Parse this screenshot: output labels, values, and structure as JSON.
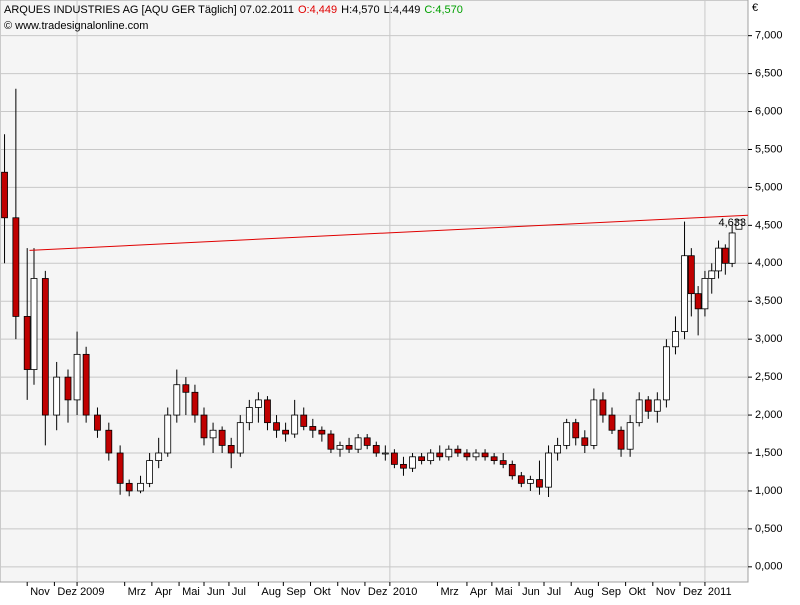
{
  "chart_data": {
    "type": "candlestick",
    "title": "ARQUES INDUSTRIES AG [AQU GER  Täglich] 07.02.2011",
    "ohlc_header": [
      {
        "text": "O:4,449",
        "color": "#e00000"
      },
      {
        "text": "H:4,570",
        "color": "#000000"
      },
      {
        "text": "L:4,449",
        "color": "#000000"
      },
      {
        "text": "C:4,570",
        "color": "#00a000"
      }
    ],
    "copyright": "© www.tradesignalonline.com",
    "y_unit": "€",
    "up_color": "#ffffff",
    "down_color": "#c00000",
    "grid": true,
    "xlim": [
      0,
      330
    ],
    "ylim": [
      -0.2,
      7.47
    ],
    "yticks": [
      {
        "value": 0,
        "label": "0,000"
      },
      {
        "value": 0.5,
        "label": "0,500"
      },
      {
        "value": 1,
        "label": "1,000"
      },
      {
        "value": 1.5,
        "label": "1,500"
      },
      {
        "value": 2,
        "label": "2,000"
      },
      {
        "value": 2.5,
        "label": "2,500"
      },
      {
        "value": 3,
        "label": "3,000"
      },
      {
        "value": 3.5,
        "label": "3,500"
      },
      {
        "value": 4,
        "label": "4,000"
      },
      {
        "value": 4.5,
        "label": "4,500"
      },
      {
        "value": 5,
        "label": "5,000"
      },
      {
        "value": 5.5,
        "label": "5,500"
      },
      {
        "value": 6,
        "label": "6,000"
      },
      {
        "value": 6.5,
        "label": "6,500"
      },
      {
        "value": 7,
        "label": "7,000"
      }
    ],
    "xticks": [
      {
        "value": 12,
        "label": "Nov"
      },
      {
        "value": 24,
        "label": "Dez"
      },
      {
        "value": 34,
        "label": "2009"
      },
      {
        "value": 55,
        "label": "Mrz"
      },
      {
        "value": 67,
        "label": "Apr"
      },
      {
        "value": 79,
        "label": "Mai"
      },
      {
        "value": 90,
        "label": "Jun"
      },
      {
        "value": 101,
        "label": "Jul"
      },
      {
        "value": 114,
        "label": "Aug"
      },
      {
        "value": 125,
        "label": "Sep"
      },
      {
        "value": 137,
        "label": "Okt"
      },
      {
        "value": 149,
        "label": "Nov"
      },
      {
        "value": 161,
        "label": "Dez"
      },
      {
        "value": 172,
        "label": "2010"
      },
      {
        "value": 193,
        "label": "Mrz"
      },
      {
        "value": 206,
        "label": "Apr"
      },
      {
        "value": 217,
        "label": "Mai"
      },
      {
        "value": 229,
        "label": "Jun"
      },
      {
        "value": 240,
        "label": "Jul"
      },
      {
        "value": 252,
        "label": "Aug"
      },
      {
        "value": 264,
        "label": "Sep"
      },
      {
        "value": 276,
        "label": "Okt"
      },
      {
        "value": 288,
        "label": "Nov"
      },
      {
        "value": 300,
        "label": "Dez"
      },
      {
        "value": 311,
        "label": "2011"
      }
    ],
    "series": {
      "x": [
        2,
        7,
        12,
        15,
        20,
        25,
        30,
        34,
        38,
        43,
        48,
        53,
        57,
        62,
        66,
        70,
        74,
        78,
        82,
        86,
        90,
        94,
        98,
        102,
        106,
        110,
        114,
        118,
        122,
        126,
        130,
        134,
        138,
        142,
        146,
        150,
        154,
        158,
        162,
        166,
        170,
        174,
        178,
        182,
        186,
        190,
        194,
        198,
        202,
        206,
        210,
        214,
        218,
        222,
        226,
        230,
        234,
        238,
        242,
        246,
        250,
        254,
        258,
        262,
        266,
        270,
        274,
        278,
        282,
        286,
        290,
        294,
        298,
        302,
        305,
        308,
        311,
        314,
        317,
        320,
        323,
        326
      ],
      "open": [
        5.2,
        4.6,
        3.3,
        2.6,
        3.8,
        2.0,
        2.5,
        2.2,
        2.8,
        2.0,
        1.8,
        1.5,
        1.1,
        1.0,
        1.1,
        1.4,
        1.5,
        2.0,
        2.4,
        2.3,
        2.0,
        1.7,
        1.8,
        1.6,
        1.5,
        1.9,
        2.1,
        2.2,
        1.9,
        1.8,
        1.75,
        2.0,
        1.85,
        1.8,
        1.75,
        1.55,
        1.6,
        1.55,
        1.7,
        1.6,
        1.5,
        1.5,
        1.35,
        1.3,
        1.45,
        1.4,
        1.5,
        1.45,
        1.55,
        1.5,
        1.45,
        1.5,
        1.45,
        1.4,
        1.35,
        1.2,
        1.1,
        1.15,
        1.05,
        1.5,
        1.6,
        1.9,
        1.7,
        1.6,
        2.2,
        2.0,
        1.8,
        1.55,
        1.9,
        2.2,
        2.05,
        2.2,
        2.9,
        3.1,
        4.1,
        3.6,
        3.4,
        3.8,
        3.9,
        4.2,
        4.0,
        4.449
      ],
      "high": [
        5.7,
        6.3,
        4.2,
        4.2,
        3.9,
        2.7,
        2.6,
        3.1,
        2.9,
        2.1,
        1.9,
        1.6,
        1.15,
        1.2,
        1.5,
        1.7,
        2.1,
        2.6,
        2.5,
        2.4,
        2.1,
        1.9,
        1.85,
        1.7,
        2.0,
        2.2,
        2.3,
        2.25,
        2.0,
        1.9,
        2.2,
        2.1,
        1.95,
        1.85,
        1.8,
        1.65,
        1.7,
        1.75,
        1.75,
        1.65,
        1.6,
        1.55,
        1.45,
        1.5,
        1.5,
        1.55,
        1.6,
        1.6,
        1.6,
        1.55,
        1.55,
        1.55,
        1.5,
        1.5,
        1.4,
        1.25,
        1.2,
        1.4,
        1.6,
        1.7,
        1.95,
        1.95,
        1.8,
        2.35,
        2.3,
        2.1,
        1.85,
        2.0,
        2.3,
        2.25,
        2.3,
        3.0,
        3.3,
        4.55,
        4.2,
        3.7,
        3.9,
        4.0,
        4.3,
        4.25,
        4.5,
        4.57
      ],
      "low": [
        4.0,
        3.0,
        2.2,
        2.4,
        1.6,
        1.8,
        1.9,
        2.0,
        1.9,
        1.7,
        1.4,
        0.95,
        0.93,
        0.97,
        1.05,
        1.3,
        1.45,
        1.9,
        2.0,
        1.9,
        1.6,
        1.5,
        1.5,
        1.3,
        1.45,
        1.8,
        1.9,
        1.8,
        1.7,
        1.65,
        1.7,
        1.8,
        1.7,
        1.65,
        1.5,
        1.45,
        1.5,
        1.5,
        1.55,
        1.45,
        1.4,
        1.3,
        1.2,
        1.25,
        1.35,
        1.35,
        1.4,
        1.4,
        1.45,
        1.4,
        1.4,
        1.4,
        1.35,
        1.3,
        1.15,
        1.05,
        1.0,
        0.95,
        0.92,
        1.4,
        1.55,
        1.6,
        1.5,
        1.55,
        1.9,
        1.75,
        1.45,
        1.45,
        1.85,
        1.95,
        1.9,
        2.1,
        2.8,
        3.0,
        3.3,
        3.05,
        3.3,
        3.6,
        3.8,
        3.85,
        3.95,
        4.449
      ],
      "close": [
        4.6,
        3.3,
        2.6,
        3.8,
        2.0,
        2.5,
        2.2,
        2.8,
        2.0,
        1.8,
        1.5,
        1.1,
        1.0,
        1.1,
        1.4,
        1.5,
        2.0,
        2.4,
        2.3,
        2.0,
        1.7,
        1.8,
        1.6,
        1.5,
        1.9,
        2.1,
        2.2,
        1.9,
        1.8,
        1.75,
        2.0,
        1.85,
        1.8,
        1.75,
        1.55,
        1.6,
        1.55,
        1.7,
        1.6,
        1.5,
        1.5,
        1.35,
        1.3,
        1.45,
        1.4,
        1.5,
        1.45,
        1.55,
        1.5,
        1.45,
        1.5,
        1.45,
        1.4,
        1.35,
        1.2,
        1.1,
        1.15,
        1.05,
        1.5,
        1.6,
        1.9,
        1.7,
        1.6,
        2.2,
        2.0,
        1.8,
        1.55,
        1.9,
        2.2,
        2.05,
        2.2,
        2.9,
        3.1,
        4.1,
        3.6,
        3.4,
        3.8,
        3.9,
        4.2,
        4.0,
        4.4,
        4.57
      ]
    },
    "trendline": {
      "color": "#e00000",
      "x": [
        13,
        330
      ],
      "values": [
        4.17,
        4.633
      ],
      "label": "4,633"
    }
  }
}
